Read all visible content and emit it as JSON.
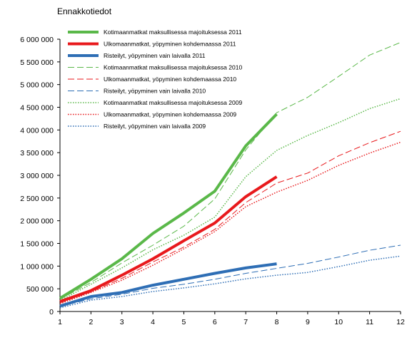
{
  "chart_data": {
    "type": "line",
    "title": "",
    "subtitle": "Ennakkotiedot",
    "xlabel": "",
    "ylabel": "",
    "x": [
      1,
      2,
      3,
      4,
      5,
      6,
      7,
      8,
      9,
      10,
      11,
      12
    ],
    "xlim": [
      1,
      12
    ],
    "ylim": [
      0,
      6000000
    ],
    "yticks": [
      0,
      500000,
      1000000,
      1500000,
      2000000,
      2500000,
      3000000,
      3500000,
      4000000,
      4500000,
      5000000,
      5500000,
      6000000
    ],
    "ytick_labels": [
      "0",
      "500 000",
      "1 000 000",
      "1 500 000",
      "2 000 000",
      "2 500 000",
      "3 000 000",
      "3 500 000",
      "4 000 000",
      "4 500 000",
      "5 000 000",
      "5 500 000",
      "6 000 000"
    ],
    "xtick_labels": [
      "1",
      "2",
      "3",
      "4",
      "5",
      "6",
      "7",
      "8",
      "9",
      "10",
      "11",
      "12"
    ],
    "grid": false,
    "legend_position": "top-left",
    "series": [
      {
        "name": "Kotimaanmatkat maksullisessa majoituksessa 2011",
        "color": "#5ab849",
        "style": "solid",
        "width": 4,
        "values": [
          290000,
          710000,
          1160000,
          1720000,
          2170000,
          2650000,
          3650000,
          4350000,
          null,
          null,
          null,
          null
        ]
      },
      {
        "name": "Ulkomaanmatkat, yöpyminen kohdemaassa 2011",
        "color": "#e8191c",
        "style": "solid",
        "width": 4,
        "values": [
          220000,
          460000,
          800000,
          1160000,
          1560000,
          1950000,
          2530000,
          2970000,
          null,
          null,
          null,
          null
        ]
      },
      {
        "name": "Risteilyt, yöpyminen vain laivalla 2011",
        "color": "#2e6eb5",
        "style": "solid",
        "width": 4,
        "values": [
          120000,
          330000,
          420000,
          580000,
          710000,
          840000,
          960000,
          1050000,
          null,
          null,
          null,
          null
        ]
      },
      {
        "name": "Kotimaanmatkat maksullisessa majoituksessa 2010",
        "color": "#5ab849",
        "style": "dashed",
        "width": 1,
        "values": [
          270000,
          640000,
          1070000,
          1460000,
          1880000,
          2480000,
          3560000,
          4380000,
          4720000,
          5180000,
          5650000,
          5930000
        ]
      },
      {
        "name": "Ulkomaanmatkat, yöpyminen kohdemaassa 2010",
        "color": "#e8191c",
        "style": "dashed",
        "width": 1,
        "values": [
          190000,
          430000,
          730000,
          1090000,
          1420000,
          1810000,
          2400000,
          2830000,
          3050000,
          3430000,
          3720000,
          3970000
        ]
      },
      {
        "name": "Risteilyt, yöpyminen vain laivalla 2010",
        "color": "#2e6eb5",
        "style": "dashed",
        "width": 1,
        "values": [
          110000,
          280000,
          380000,
          510000,
          600000,
          710000,
          840000,
          950000,
          1060000,
          1200000,
          1350000,
          1460000
        ]
      },
      {
        "name": "Kotimaanmatkat maksullisessa majoituksessa 2009",
        "color": "#5ab849",
        "style": "dotted",
        "width": 1.5,
        "values": [
          240000,
          600000,
          960000,
          1360000,
          1680000,
          2080000,
          2970000,
          3550000,
          3880000,
          4160000,
          4470000,
          4690000
        ]
      },
      {
        "name": "Ulkomaanmatkat, yöpyminen kohdemaassa 2009",
        "color": "#e8191c",
        "style": "dotted",
        "width": 1.5,
        "values": [
          170000,
          420000,
          690000,
          1020000,
          1380000,
          1760000,
          2310000,
          2630000,
          2890000,
          3220000,
          3490000,
          3730000
        ]
      },
      {
        "name": "Risteilyt, yöpyminen vain laivalla 2009",
        "color": "#2e6eb5",
        "style": "dotted",
        "width": 1.5,
        "values": [
          80000,
          250000,
          330000,
          440000,
          520000,
          610000,
          720000,
          800000,
          860000,
          990000,
          1130000,
          1220000
        ]
      }
    ]
  }
}
